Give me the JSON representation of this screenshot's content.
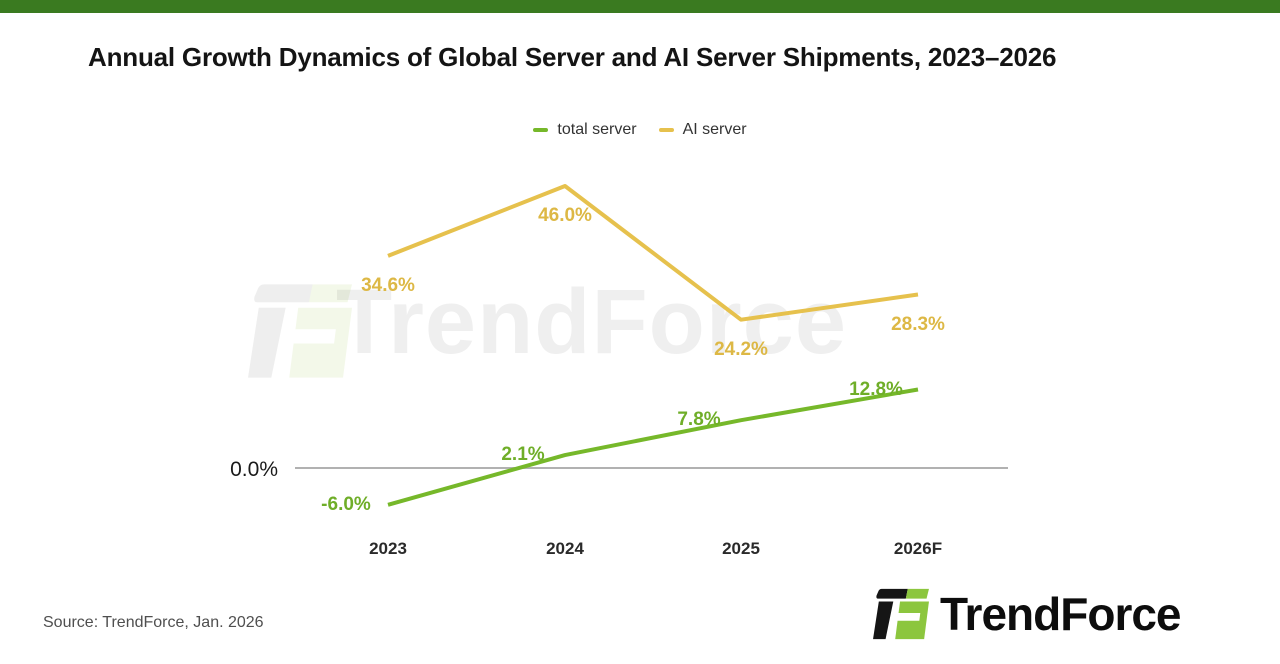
{
  "page": {
    "title": "Annual Growth Dynamics of Global Server and AI Server Shipments, 2023–2026",
    "source": "Source: TrendForce, Jan. 2026",
    "brand": "TrendForce",
    "watermark": "TrendForce",
    "accent_bar_color": "#3a7a20"
  },
  "chart_data": {
    "type": "line",
    "title": "Annual Growth Dynamics of Global Server and AI Server Shipments, 2023–2026",
    "categories": [
      "2023",
      "2024",
      "2025",
      "2026F"
    ],
    "series": [
      {
        "name": "total server",
        "color": "#76b82a",
        "label_color": "#6fae28",
        "values": [
          -6.0,
          2.1,
          7.8,
          12.8
        ]
      },
      {
        "name": "AI server",
        "color": "#e6c14d",
        "label_color": "#ddb845",
        "values": [
          34.6,
          46.0,
          24.2,
          28.3
        ]
      }
    ],
    "baseline_label": "0.0%",
    "baseline_value": 0,
    "ylim": [
      -12,
      52
    ],
    "grid": false,
    "legend_position": "top",
    "data_labels": true
  }
}
